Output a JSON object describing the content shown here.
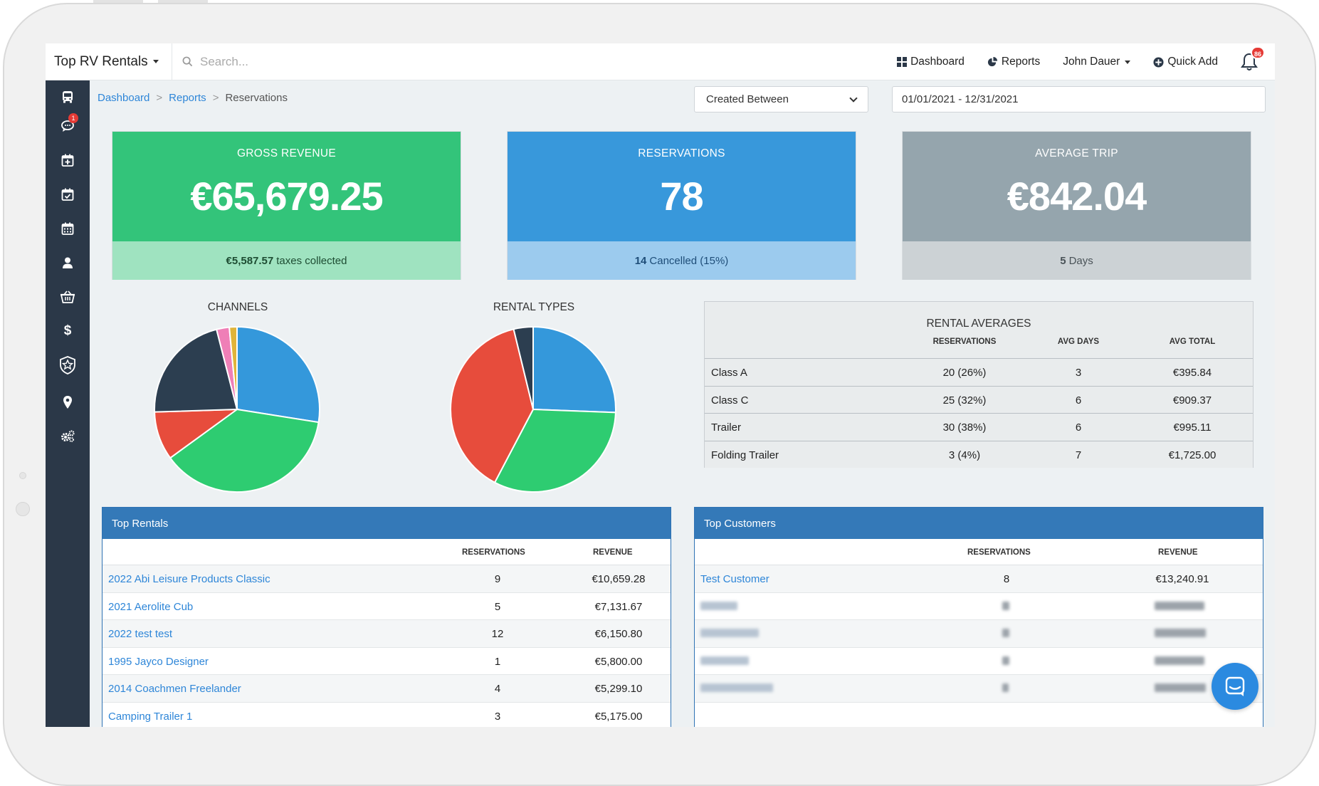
{
  "topbar": {
    "brand": "Top RV Rentals",
    "search_placeholder": "Search...",
    "nav": {
      "dashboard": "Dashboard",
      "reports": "Reports",
      "user": "John Dauer",
      "quick_add": "Quick Add"
    },
    "notifications_count": "86"
  },
  "sidebar": {
    "items": [
      {
        "icon": "bus-icon"
      },
      {
        "icon": "chat-icon",
        "badge": "1"
      },
      {
        "icon": "calendar-plus-icon"
      },
      {
        "icon": "calendar-check-icon"
      },
      {
        "icon": "calendar-icon"
      },
      {
        "icon": "user-icon"
      },
      {
        "icon": "basket-icon"
      },
      {
        "icon": "dollar-icon"
      },
      {
        "icon": "shield-star-icon"
      },
      {
        "icon": "map-pin-icon"
      },
      {
        "icon": "cogs-icon"
      }
    ]
  },
  "breadcrumb": {
    "items": [
      "Dashboard",
      "Reports",
      "Reservations"
    ],
    "separator": ">"
  },
  "filters": {
    "date_type": "Created Between",
    "date_range": "01/01/2021 - 12/31/2021"
  },
  "cards": {
    "gross_revenue": {
      "title": "GROSS REVENUE",
      "value": "€65,679.25",
      "sub_bold": "€5,587.57",
      "sub": "taxes collected",
      "color": "#33c47a",
      "sub_color": "#9fe3c0"
    },
    "reservations": {
      "title": "RESERVATIONS",
      "value": "78",
      "sub_bold": "14",
      "sub": "Cancelled (15%)",
      "color": "#3898db",
      "sub_color": "#9ccbee"
    },
    "average_trip": {
      "title": "AVERAGE TRIP",
      "value": "€842.04",
      "sub_bold": "5",
      "sub": "Days",
      "color": "#95a5ad",
      "sub_color": "#ccd2d5"
    }
  },
  "charts": {
    "channels_title": "CHANNELS",
    "rental_types_title": "RENTAL TYPES"
  },
  "chart_data": [
    {
      "type": "pie",
      "title": "CHANNELS",
      "slices": [
        {
          "value": 27.5,
          "color": "#3498db"
        },
        {
          "value": 37.5,
          "color": "#2ecc71"
        },
        {
          "value": 9.5,
          "color": "#e74c3c"
        },
        {
          "value": 21.5,
          "color": "#2c3e50"
        },
        {
          "value": 2.5,
          "color": "#ef7fb7"
        },
        {
          "value": 1.5,
          "color": "#e0b43a"
        }
      ]
    },
    {
      "type": "pie",
      "title": "RENTAL TYPES",
      "slices": [
        {
          "value": 25.6,
          "color": "#3498db",
          "name": "Class A"
        },
        {
          "value": 32.1,
          "color": "#2ecc71",
          "name": "Class C"
        },
        {
          "value": 38.5,
          "color": "#e74c3c",
          "name": "Trailer"
        },
        {
          "value": 3.8,
          "color": "#2c3e50",
          "name": "Folding Trailer"
        }
      ]
    }
  ],
  "rental_averages": {
    "title": "RENTAL AVERAGES",
    "columns": [
      "RESERVATIONS",
      "AVG DAYS",
      "AVG TOTAL"
    ],
    "rows": [
      {
        "name": "Class A",
        "reservations": "20 (26%)",
        "avg_days": "3",
        "avg_total": "€395.84"
      },
      {
        "name": "Class C",
        "reservations": "25 (32%)",
        "avg_days": "6",
        "avg_total": "€909.37"
      },
      {
        "name": "Trailer",
        "reservations": "30 (38%)",
        "avg_days": "6",
        "avg_total": "€995.11"
      },
      {
        "name": "Folding Trailer",
        "reservations": "3 (4%)",
        "avg_days": "7",
        "avg_total": "€1,725.00"
      }
    ]
  },
  "top_rentals": {
    "title": "Top Rentals",
    "columns": [
      "RESERVATIONS",
      "REVENUE"
    ],
    "rows": [
      {
        "name": "2022 Abi Leisure Products Classic",
        "reservations": "9",
        "revenue": "€10,659.28"
      },
      {
        "name": "2021 Aerolite Cub",
        "reservations": "5",
        "revenue": "€7,131.67"
      },
      {
        "name": "2022 test test",
        "reservations": "12",
        "revenue": "€6,150.80"
      },
      {
        "name": "1995 Jayco Designer",
        "reservations": "1",
        "revenue": "€5,800.00"
      },
      {
        "name": "2014 Coachmen Freelander",
        "reservations": "4",
        "revenue": "€5,299.10"
      },
      {
        "name": "Camping Trailer 1",
        "reservations": "3",
        "revenue": "€5,175.00"
      }
    ]
  },
  "top_customers": {
    "title": "Top Customers",
    "columns": [
      "RESERVATIONS",
      "REVENUE"
    ],
    "rows": [
      {
        "name": "Test Customer",
        "reservations": "8",
        "revenue": "€13,240.91"
      }
    ]
  }
}
